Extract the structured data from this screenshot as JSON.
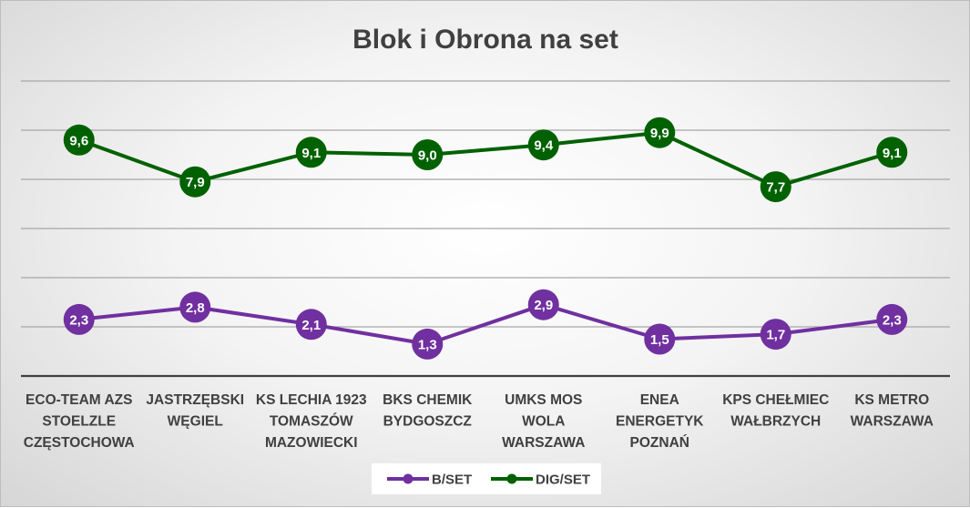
{
  "chart_data": {
    "type": "line",
    "title": "Blok i Obrona na set",
    "categories": [
      [
        "ECO-TEAM AZS",
        "STOELZLE",
        "CZĘSTOCHOWA"
      ],
      [
        "JASTRZĘBSKI",
        "WĘGIEL"
      ],
      [
        "KS LECHIA 1923",
        "TOMASZÓW",
        "MAZOWIECKI"
      ],
      [
        "BKS CHEMIK",
        "BYDGOSZCZ"
      ],
      [
        "UMKS MOS",
        "WOLA",
        "WARSZAWA"
      ],
      [
        "ENEA",
        "ENERGETYK",
        "POZNAŃ"
      ],
      [
        "KPS CHEŁMIEC",
        "WAŁBRZYCH"
      ],
      [
        "KS METRO",
        "WARSZAWA"
      ]
    ],
    "series": [
      {
        "name": "B/SET",
        "color": "#7030a0",
        "values": [
          2.3,
          2.8,
          2.1,
          1.3,
          2.9,
          1.5,
          1.7,
          2.3
        ],
        "labels": [
          "2,3",
          "2,8",
          "2,1",
          "1,3",
          "2,9",
          "1,5",
          "1,7",
          "2,3"
        ]
      },
      {
        "name": "DIG/SET",
        "color": "#006100",
        "values": [
          9.6,
          7.9,
          9.1,
          9.0,
          9.4,
          9.9,
          7.7,
          9.1
        ],
        "labels": [
          "9,6",
          "7,9",
          "9,1",
          "9,0",
          "9,4",
          "9,9",
          "7,7",
          "9,1"
        ]
      }
    ],
    "ylim": [
      0,
      12
    ],
    "grid": true,
    "legend": "bottom"
  }
}
